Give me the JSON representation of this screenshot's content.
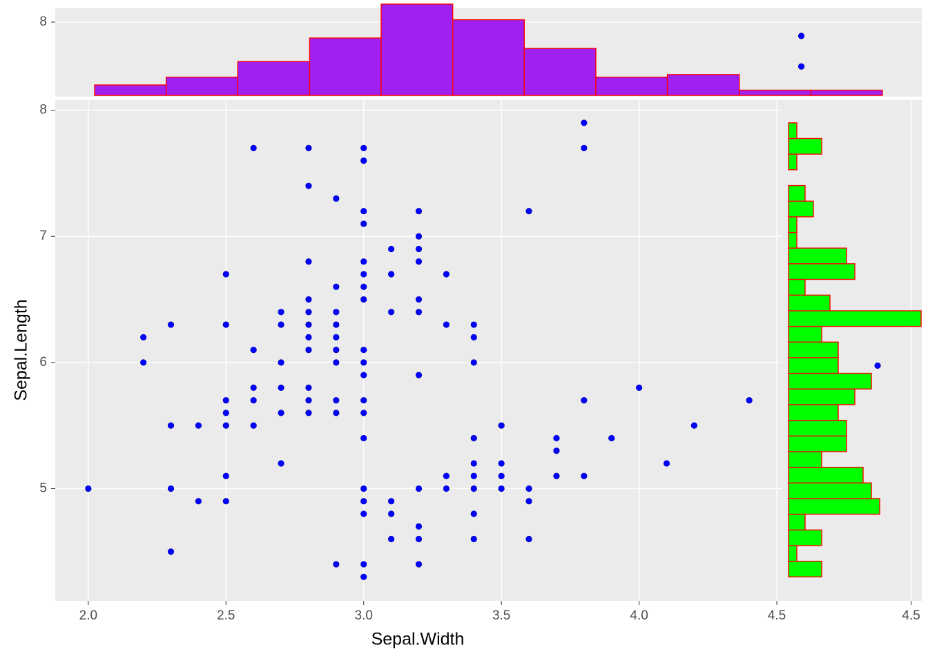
{
  "chart_data": [
    {
      "type": "scatter",
      "xlabel": "Sepal.Width",
      "ylabel": "Sepal.Length",
      "xlim": [
        1.88,
        4.52
      ],
      "ylim": [
        4.11,
        8.08
      ],
      "xticks": [
        {
          "value": 2.0,
          "label": "2.0"
        },
        2.5,
        {
          "value": 3.0,
          "label": "3.0"
        },
        3.5,
        {
          "value": 4.0,
          "label": "4.0"
        },
        4.5
      ],
      "yticks": [
        5,
        6,
        7,
        8
      ],
      "grid": true,
      "color": "#0000ff",
      "x": [
        2.0,
        2.2,
        2.2,
        2.3,
        2.3,
        2.3,
        2.3,
        2.4,
        2.4,
        2.5,
        2.5,
        2.5,
        2.5,
        2.5,
        2.5,
        2.5,
        2.6,
        2.6,
        2.6,
        2.6,
        2.6,
        2.7,
        2.7,
        2.7,
        2.7,
        2.7,
        2.7,
        2.8,
        2.8,
        2.8,
        2.8,
        2.8,
        2.8,
        2.8,
        2.8,
        2.8,
        2.8,
        2.8,
        2.9,
        2.9,
        2.9,
        2.9,
        2.9,
        2.9,
        2.9,
        2.9,
        2.9,
        2.9,
        3.0,
        3.0,
        3.0,
        3.0,
        3.0,
        3.0,
        3.0,
        3.0,
        3.0,
        3.0,
        3.0,
        3.0,
        3.0,
        3.0,
        3.0,
        3.0,
        3.0,
        3.0,
        3.0,
        3.1,
        3.1,
        3.1,
        3.1,
        3.1,
        3.1,
        3.2,
        3.2,
        3.2,
        3.2,
        3.2,
        3.2,
        3.2,
        3.2,
        3.2,
        3.2,
        3.2,
        3.3,
        3.3,
        3.3,
        3.3,
        3.4,
        3.4,
        3.4,
        3.4,
        3.4,
        3.4,
        3.4,
        3.4,
        3.4,
        3.5,
        3.5,
        3.5,
        3.5,
        3.6,
        3.6,
        3.6,
        3.6,
        3.7,
        3.7,
        3.7,
        3.8,
        3.8,
        3.8,
        3.8,
        3.9,
        4.0,
        4.1,
        4.2,
        4.4
      ],
      "y": [
        5.0,
        6.2,
        6.0,
        6.3,
        5.5,
        5.0,
        4.5,
        5.5,
        4.9,
        6.7,
        6.3,
        5.7,
        5.6,
        5.5,
        5.1,
        4.9,
        7.7,
        6.1,
        5.8,
        5.7,
        5.5,
        6.4,
        6.3,
        6.0,
        5.8,
        5.6,
        5.2,
        7.7,
        7.4,
        6.8,
        6.5,
        6.4,
        6.3,
        6.2,
        6.1,
        5.8,
        5.7,
        5.6,
        7.3,
        6.6,
        6.4,
        6.3,
        6.2,
        6.1,
        6.0,
        5.7,
        5.6,
        4.4,
        7.7,
        7.6,
        7.2,
        7.1,
        6.8,
        6.7,
        6.6,
        6.5,
        6.1,
        6.0,
        5.9,
        5.7,
        5.6,
        5.4,
        5.0,
        4.9,
        4.8,
        4.4,
        4.3,
        6.9,
        6.7,
        6.4,
        4.9,
        4.8,
        4.6,
        7.2,
        7.0,
        6.9,
        6.8,
        6.5,
        6.4,
        5.9,
        5.0,
        4.7,
        4.6,
        4.4,
        6.7,
        6.3,
        5.1,
        5.0,
        6.3,
        6.2,
        6.0,
        5.4,
        5.2,
        5.1,
        5.0,
        4.8,
        4.6,
        5.5,
        5.2,
        5.1,
        5.0,
        7.2,
        5.0,
        4.9,
        4.6,
        5.4,
        5.3,
        5.1,
        7.9,
        7.7,
        5.7,
        5.1,
        5.4,
        5.8,
        5.2,
        5.5,
        5.7
      ]
    },
    {
      "type": "histogram",
      "xlim": [
        1.88,
        4.52
      ],
      "ylim": [
        -0.5,
        33.4
      ],
      "yticks": [
        {
          "value": 28.1,
          "label": "8"
        }
      ],
      "color": "#a020f0",
      "edgecolor": "#ff0000",
      "bins": [
        2.0,
        2.218,
        2.436,
        2.655,
        2.873,
        3.091,
        3.309,
        3.527,
        3.745,
        3.964,
        4.182,
        4.4
      ],
      "values": [
        4,
        7,
        13,
        22,
        35,
        29,
        18,
        7,
        8,
        2,
        2
      ],
      "points": {
        "color": "#0000ff",
        "x": [
          4.153,
          4.153
        ],
        "y": [
          22.8,
          11.1
        ]
      }
    },
    {
      "type": "histogram-horizontal",
      "xlim": [
        -0.75,
        16.08
      ],
      "ylim": [
        4.11,
        8.08
      ],
      "xticks": [
        {
          "value": 14.8,
          "label": "4.5"
        }
      ],
      "color": "#00ff00",
      "edgecolor": "#ff0000",
      "bins": [
        4.3,
        4.424,
        4.548,
        4.672,
        4.797,
        4.921,
        5.045,
        5.169,
        5.293,
        5.417,
        5.541,
        5.666,
        5.79,
        5.914,
        6.038,
        6.162,
        6.286,
        6.41,
        6.534,
        6.659,
        6.783,
        6.907,
        7.031,
        7.155,
        7.279,
        7.403,
        7.528,
        7.652,
        7.776,
        7.9
      ],
      "values": [
        4,
        1,
        4,
        2,
        11,
        10,
        9,
        4,
        7,
        7,
        6,
        8,
        10,
        6,
        6,
        4,
        16,
        5,
        2,
        8,
        7,
        1,
        1,
        3,
        2,
        0,
        1,
        4,
        1
      ],
      "points": {
        "color": "#0000ff",
        "x": [
          10.75
        ],
        "y": [
          5.975
        ]
      }
    }
  ]
}
